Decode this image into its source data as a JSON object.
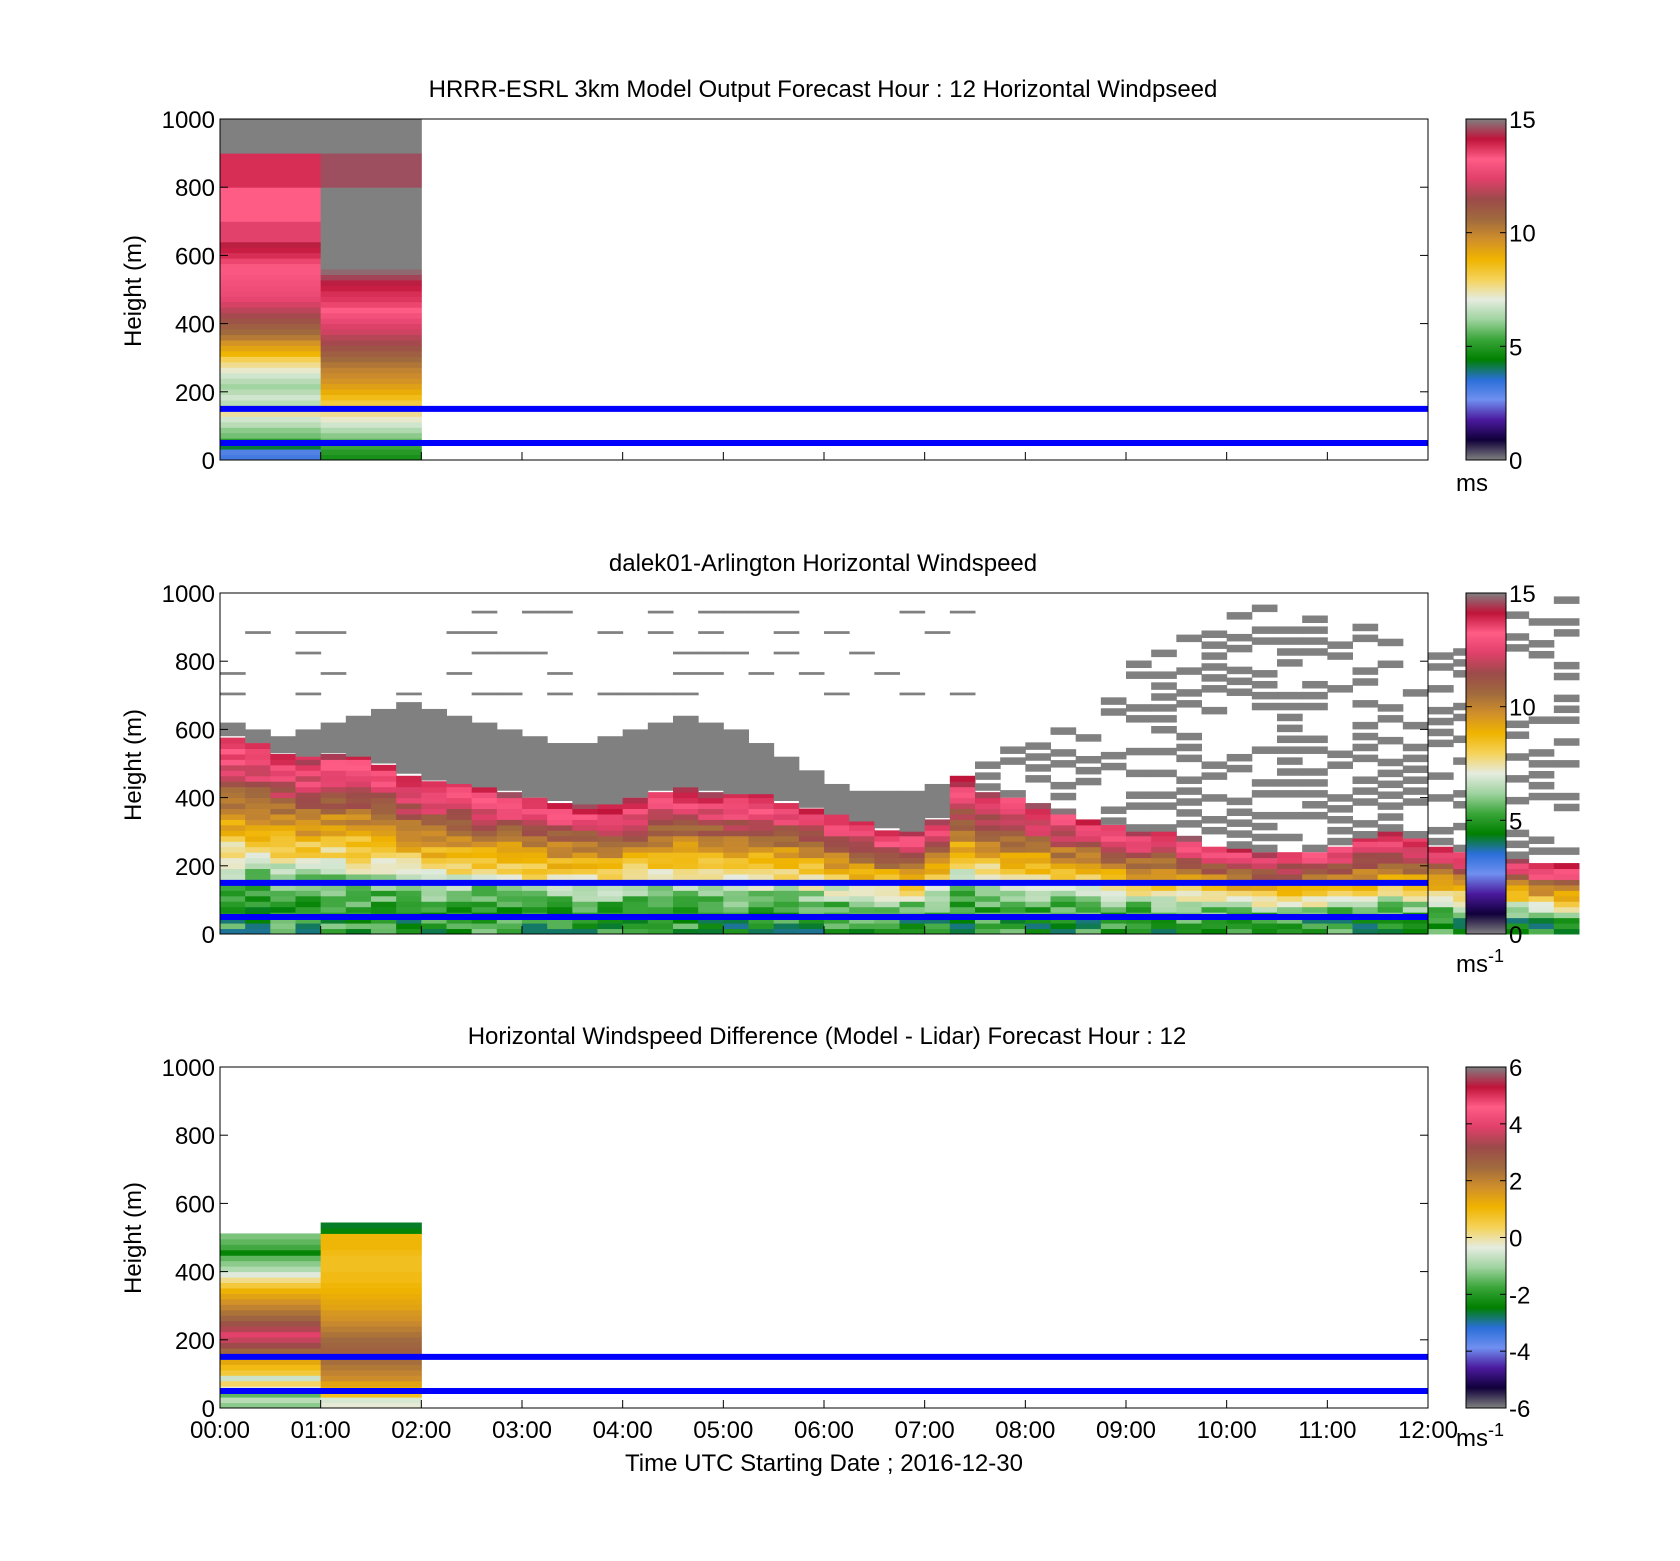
{
  "figure": {
    "xlabel": "Time UTC  Starting Date ; 2016-12-30",
    "x_ticks": [
      "00:00",
      "01:00",
      "02:00",
      "03:00",
      "04:00",
      "05:00",
      "06:00",
      "07:00",
      "08:00",
      "09:00",
      "10:00",
      "11:00",
      "12:00"
    ],
    "blue_lines_height_m": [
      150,
      50
    ]
  },
  "chart_data": [
    {
      "type": "heatmap",
      "title": "HRRR-ESRL 3km Model Output   Forecast Hour : 12 Horizontal Windpseed",
      "xlabel": "",
      "ylabel": "Height (m)",
      "xlim": [
        0,
        12
      ],
      "ylim": [
        0,
        1000
      ],
      "y_ticks": [
        "0",
        "200",
        "400",
        "600",
        "800",
        "1000"
      ],
      "grid": false,
      "colorbar": {
        "range": [
          0,
          15
        ],
        "ticks": [
          "0",
          "5",
          "10",
          "15"
        ],
        "unit": "ms",
        "unit_sup": "",
        "stops": [
          "#808080",
          "#10003a",
          "#4b1a9e",
          "#6f8ff0",
          "#2a6fd8",
          "#008000",
          "#39a539",
          "#9fd39f",
          "#e5ece0",
          "#f5d25a",
          "#f0b400",
          "#d08f2a",
          "#a06a3e",
          "#9c4a4a",
          "#e0406a",
          "#ff5c86",
          "#c0143a",
          "#808080"
        ],
        "caps": "#808080"
      },
      "columns": [
        {
          "x": [
            0,
            1
          ],
          "cells": [
            [
              0,
              16,
              3.2
            ],
            [
              16,
              32,
              3.0
            ],
            [
              32,
              48,
              4.2
            ],
            [
              48,
              64,
              5.0
            ],
            [
              64,
              80,
              5.8
            ],
            [
              80,
              96,
              6.0
            ],
            [
              96,
              112,
              6.5
            ],
            [
              112,
              128,
              6.8
            ],
            [
              128,
              144,
              7.5
            ],
            [
              144,
              160,
              8.0
            ],
            [
              160,
              176,
              6.5
            ],
            [
              176,
              192,
              6.8
            ],
            [
              192,
              208,
              6.5
            ],
            [
              208,
              224,
              6.2
            ],
            [
              224,
              240,
              6.5
            ],
            [
              240,
              256,
              6.8
            ],
            [
              256,
              272,
              7.2
            ],
            [
              272,
              288,
              7.6
            ],
            [
              288,
              304,
              8.0
            ],
            [
              304,
              320,
              8.8
            ],
            [
              320,
              336,
              9.2
            ],
            [
              336,
              352,
              9.6
            ],
            [
              352,
              368,
              10.2
            ],
            [
              368,
              384,
              10.6
            ],
            [
              384,
              400,
              10.9
            ],
            [
              400,
              416,
              11.2
            ],
            [
              416,
              432,
              11.6
            ],
            [
              432,
              448,
              11.9
            ],
            [
              448,
              464,
              12.2
            ],
            [
              464,
              480,
              12.5
            ],
            [
              480,
              496,
              12.7
            ],
            [
              496,
              512,
              12.8
            ],
            [
              512,
              528,
              12.9
            ],
            [
              528,
              544,
              13.0
            ],
            [
              544,
              560,
              13.1
            ],
            [
              560,
              576,
              13.3
            ],
            [
              576,
              592,
              13.5
            ],
            [
              592,
              608,
              13.8
            ],
            [
              608,
              624,
              14.0
            ],
            [
              624,
              640,
              14.2
            ],
            [
              640,
              700,
              12.4
            ],
            [
              700,
              800,
              13.2
            ],
            [
              800,
              900,
              13.8
            ],
            [
              900,
              1000,
              15.5
            ]
          ]
        },
        {
          "x": [
            1,
            2
          ],
          "cells": [
            [
              0,
              16,
              4.8
            ],
            [
              16,
              32,
              5.0
            ],
            [
              32,
              48,
              5.3
            ],
            [
              48,
              64,
              5.6
            ],
            [
              64,
              80,
              6.0
            ],
            [
              80,
              96,
              6.4
            ],
            [
              96,
              112,
              6.8
            ],
            [
              112,
              128,
              7.2
            ],
            [
              128,
              144,
              7.6
            ],
            [
              144,
              160,
              7.9
            ],
            [
              160,
              176,
              8.2
            ],
            [
              176,
              192,
              8.6
            ],
            [
              192,
              208,
              9.0
            ],
            [
              208,
              224,
              9.3
            ],
            [
              224,
              240,
              9.6
            ],
            [
              240,
              256,
              9.8
            ],
            [
              256,
              272,
              10.0
            ],
            [
              272,
              288,
              10.3
            ],
            [
              288,
              304,
              10.6
            ],
            [
              304,
              320,
              10.9
            ],
            [
              320,
              336,
              11.2
            ],
            [
              336,
              352,
              11.6
            ],
            [
              352,
              368,
              11.8
            ],
            [
              368,
              384,
              12.1
            ],
            [
              384,
              400,
              12.3
            ],
            [
              400,
              416,
              12.6
            ],
            [
              416,
              432,
              12.9
            ],
            [
              432,
              448,
              13.2
            ],
            [
              448,
              464,
              13.5
            ],
            [
              464,
              480,
              13.7
            ],
            [
              480,
              496,
              13.8
            ],
            [
              496,
              512,
              14.0
            ],
            [
              512,
              528,
              14.2
            ],
            [
              528,
              544,
              14.5
            ],
            [
              544,
              560,
              14.8
            ],
            [
              560,
              576,
              15.0
            ],
            [
              576,
              592,
              15.2
            ],
            [
              592,
              608,
              15.4
            ],
            [
              608,
              624,
              15.6
            ],
            [
              624,
              640,
              15.8
            ],
            [
              640,
              700,
              15.8
            ],
            [
              700,
              800,
              15.9
            ],
            [
              800,
              900,
              14.6
            ],
            [
              900,
              1000,
              15.9
            ]
          ]
        }
      ]
    },
    {
      "type": "heatmap",
      "title": "dalek01-Arlington  Horizontal Windspeed",
      "xlabel": "",
      "ylabel": "Height (m)",
      "xlim": [
        0,
        12
      ],
      "ylim": [
        0,
        1000
      ],
      "y_ticks": [
        "0",
        "200",
        "400",
        "600",
        "800",
        "1000"
      ],
      "grid": false,
      "colorbar": {
        "range": [
          0,
          15
        ],
        "ticks": [
          "0",
          "5",
          "10",
          "15"
        ],
        "unit": "ms",
        "unit_sup": "-1",
        "stops": [
          "#808080",
          "#10003a",
          "#4b1a9e",
          "#6f8ff0",
          "#2a6fd8",
          "#008000",
          "#39a539",
          "#9fd39f",
          "#e5ece0",
          "#f5d25a",
          "#f0b400",
          "#d08f2a",
          "#a06a3e",
          "#9c4a4a",
          "#e0406a",
          "#ff5c86",
          "#c0143a",
          "#808080"
        ],
        "caps": "#808080"
      },
      "time_bin_hours": 0.25,
      "layer_top_m": [
        580,
        560,
        530,
        520,
        530,
        520,
        500,
        470,
        450,
        440,
        430,
        420,
        400,
        390,
        380,
        380,
        400,
        420,
        430,
        420,
        410,
        410,
        390,
        370,
        350,
        330,
        310,
        300,
        340,
        460,
        420,
        400,
        380,
        360,
        340,
        320,
        300,
        300,
        280,
        260,
        250,
        240,
        240,
        240,
        260,
        280,
        300,
        280,
        260,
        240,
        220,
        220,
        200,
        200
      ],
      "cloud_top_m": [
        620,
        600,
        580,
        600,
        620,
        640,
        660,
        680,
        660,
        640,
        620,
        600,
        580,
        560,
        560,
        580,
        600,
        620,
        640,
        620,
        600,
        560,
        520,
        480,
        440,
        420,
        420,
        420,
        440,
        480,
        520,
        560,
        600,
        640,
        700,
        760,
        820,
        880,
        920,
        960,
        980,
        1000,
        1000,
        980,
        960,
        920,
        900,
        880,
        860,
        880,
        920,
        960,
        980,
        1000
      ]
    },
    {
      "type": "heatmap",
      "title": "Horizontal Windspeed Difference (Model - Lidar) Forecast Hour : 12",
      "xlabel": "Time UTC  Starting Date ; 2016-12-30",
      "ylabel": "Height (m)",
      "xlim": [
        0,
        12
      ],
      "ylim": [
        0,
        1000
      ],
      "y_ticks": [
        "0",
        "200",
        "400",
        "600",
        "800",
        "1000"
      ],
      "grid": false,
      "colorbar": {
        "range": [
          -6,
          6
        ],
        "ticks": [
          "-6",
          "-4",
          "-2",
          "0",
          "2",
          "4",
          "6"
        ],
        "unit": "ms",
        "unit_sup": "-1",
        "stops": [
          "#808080",
          "#10003a",
          "#4b1a9e",
          "#6f8ff0",
          "#2a6fd8",
          "#008000",
          "#39a539",
          "#9fd39f",
          "#e5ece0",
          "#f5d25a",
          "#f0b400",
          "#d08f2a",
          "#a06a3e",
          "#9c4a4a",
          "#e0406a",
          "#ff5c86",
          "#c0143a",
          "#808080"
        ],
        "caps": "#808080"
      },
      "columns": [
        {
          "x": [
            0,
            1
          ],
          "cells": [
            [
              0,
              16,
              -1.2
            ],
            [
              16,
              32,
              -0.8
            ],
            [
              32,
              48,
              -1.5
            ],
            [
              48,
              64,
              -0.3
            ],
            [
              64,
              80,
              0.3
            ],
            [
              80,
              96,
              -0.6
            ],
            [
              96,
              112,
              0.6
            ],
            [
              112,
              128,
              0.9
            ],
            [
              128,
              144,
              1.3
            ],
            [
              144,
              160,
              2.0
            ],
            [
              160,
              176,
              2.6
            ],
            [
              176,
              192,
              3.2
            ],
            [
              192,
              208,
              3.6
            ],
            [
              208,
              224,
              3.9
            ],
            [
              224,
              240,
              3.4
            ],
            [
              240,
              256,
              3.0
            ],
            [
              256,
              272,
              2.6
            ],
            [
              272,
              288,
              2.3
            ],
            [
              288,
              304,
              2.0
            ],
            [
              304,
              320,
              1.7
            ],
            [
              320,
              336,
              1.4
            ],
            [
              336,
              352,
              1.1
            ],
            [
              352,
              368,
              0.6
            ],
            [
              368,
              384,
              0.1
            ],
            [
              384,
              400,
              -0.4
            ],
            [
              400,
              416,
              -0.9
            ],
            [
              416,
              432,
              -1.2
            ],
            [
              432,
              448,
              -1.5
            ],
            [
              448,
              464,
              -2.4
            ],
            [
              464,
              480,
              -1.7
            ],
            [
              480,
              496,
              -1.5
            ],
            [
              496,
              512,
              -1.3
            ]
          ]
        },
        {
          "x": [
            1,
            2
          ],
          "cells": [
            [
              0,
              16,
              -0.3
            ],
            [
              16,
              32,
              -0.5
            ],
            [
              32,
              48,
              0.8
            ],
            [
              48,
              64,
              1.1
            ],
            [
              64,
              80,
              1.4
            ],
            [
              80,
              96,
              1.8
            ],
            [
              96,
              112,
              2.0
            ],
            [
              112,
              128,
              2.2
            ],
            [
              128,
              144,
              2.4
            ],
            [
              144,
              160,
              2.6
            ],
            [
              160,
              176,
              2.7
            ],
            [
              176,
              192,
              2.6
            ],
            [
              192,
              208,
              2.5
            ],
            [
              208,
              224,
              2.3
            ],
            [
              224,
              240,
              2.1
            ],
            [
              240,
              256,
              1.9
            ],
            [
              256,
              272,
              1.7
            ],
            [
              272,
              288,
              1.6
            ],
            [
              288,
              304,
              1.4
            ],
            [
              304,
              320,
              1.3
            ],
            [
              320,
              336,
              1.2
            ],
            [
              336,
              352,
              1.1
            ],
            [
              352,
              368,
              1.0
            ],
            [
              368,
              384,
              0.9
            ],
            [
              384,
              400,
              0.9
            ],
            [
              400,
              416,
              0.8
            ],
            [
              416,
              432,
              0.8
            ],
            [
              432,
              448,
              0.8
            ],
            [
              448,
              464,
              0.9
            ],
            [
              464,
              480,
              1.0
            ],
            [
              480,
              496,
              1.0
            ],
            [
              496,
              512,
              1.0
            ],
            [
              512,
              528,
              -2.4
            ],
            [
              528,
              544,
              -2.6
            ]
          ]
        }
      ]
    }
  ]
}
